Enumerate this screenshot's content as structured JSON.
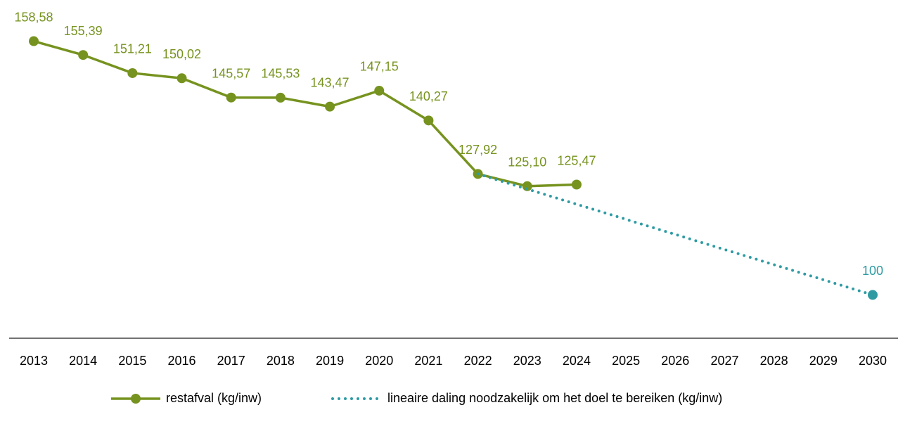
{
  "chart_data": {
    "type": "line",
    "categories": [
      "2013",
      "2014",
      "2015",
      "2016",
      "2017",
      "2018",
      "2019",
      "2020",
      "2021",
      "2022",
      "2023",
      "2024",
      "2025",
      "2026",
      "2027",
      "2028",
      "2029",
      "2030"
    ],
    "series": [
      {
        "name": "restafval (kg/inw)",
        "color": "#76931f",
        "linestyle": "solid",
        "markers": true,
        "values": [
          158.58,
          155.39,
          151.21,
          150.02,
          145.57,
          145.53,
          143.47,
          147.15,
          140.27,
          127.92,
          125.1,
          125.47,
          null,
          null,
          null,
          null,
          null,
          null
        ],
        "value_labels": [
          "158,58",
          "155,39",
          "151,21",
          "150,02",
          "145,57",
          "145,53",
          "143,47",
          "147,15",
          "140,27",
          "127,92",
          "125,10",
          "125,47",
          null,
          null,
          null,
          null,
          null,
          null
        ]
      },
      {
        "name": "lineaire daling noodzakelijk om het doel te bereiken (kg/inw)",
        "color": "#2e9ba3",
        "linestyle": "dotted",
        "markers": false,
        "values": [
          null,
          null,
          null,
          null,
          null,
          null,
          null,
          null,
          null,
          127.92,
          124.43,
          120.94,
          117.45,
          113.96,
          110.47,
          106.98,
          103.49,
          100
        ],
        "value_labels": [
          null,
          null,
          null,
          null,
          null,
          null,
          null,
          null,
          null,
          null,
          null,
          null,
          null,
          null,
          null,
          null,
          null,
          "100"
        ]
      }
    ],
    "ylim": [
      90,
      165
    ]
  }
}
